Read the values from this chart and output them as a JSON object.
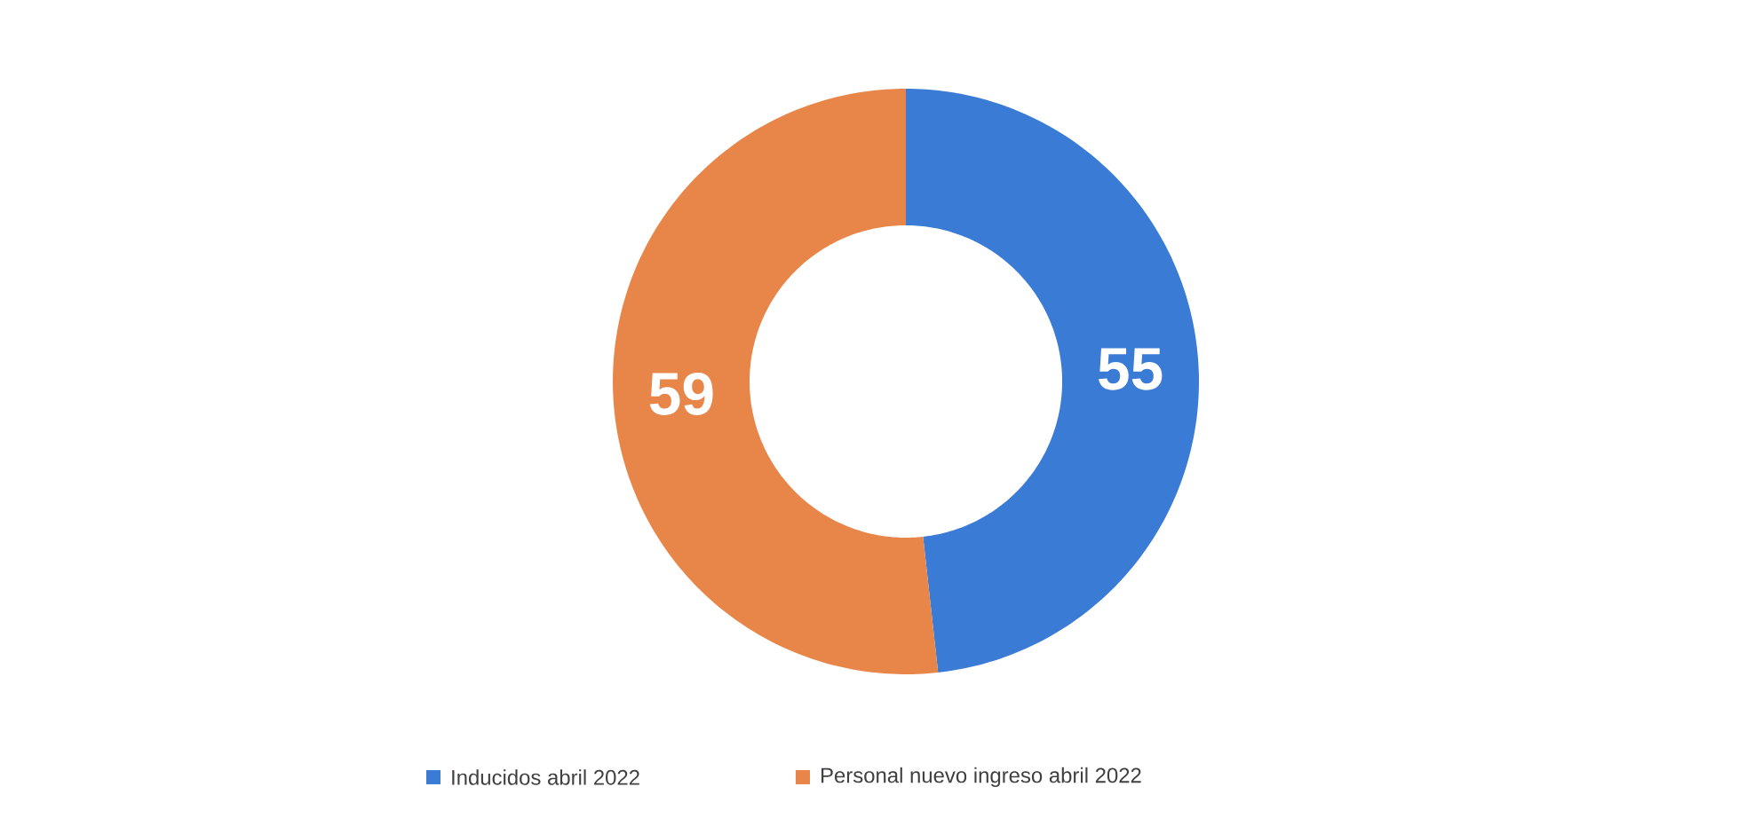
{
  "chart_data": {
    "type": "donut",
    "categories": [
      "Inducidos abril 2022",
      "Personal nuevo ingreso abril 2022"
    ],
    "values": [
      55,
      59
    ],
    "colors": [
      "#3a7bd5",
      "#e8864a"
    ],
    "data_labels": true,
    "legend": "bottom"
  }
}
